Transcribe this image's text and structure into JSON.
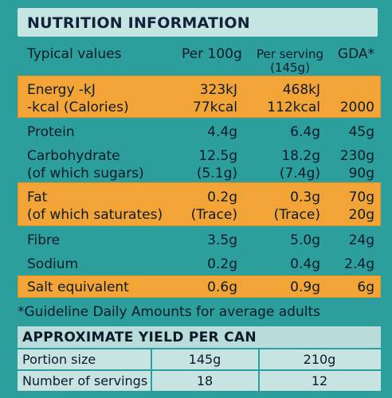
{
  "title": "NUTRITION INFORMATION",
  "header": {
    "label": "Typical values",
    "per100": "Per 100g",
    "perserving": "Per serving",
    "perserving_sub": "(145g)",
    "gda": "GDA*"
  },
  "rows": [
    {
      "label": "Energy -kJ",
      "per100": "323kJ",
      "perserving": "468kJ",
      "gda": ""
    },
    {
      "label": "-kcal (Calories)",
      "per100": "77kcal",
      "perserving": "112kcal",
      "gda": "2000"
    },
    {
      "label": "Protein",
      "per100": "4.4g",
      "perserving": "6.4g",
      "gda": "45g"
    },
    {
      "label": "Carbohydrate",
      "per100": "12.5g",
      "perserving": "18.2g",
      "gda": "230g"
    },
    {
      "label": "(of which sugars)",
      "per100": "(5.1g)",
      "perserving": "(7.4g)",
      "gda": "90g"
    },
    {
      "label": "Fat",
      "per100": "0.2g",
      "perserving": "0.3g",
      "gda": "70g"
    },
    {
      "label": "(of which saturates)",
      "per100": "(Trace)",
      "perserving": "(Trace)",
      "gda": "20g"
    },
    {
      "label": "Fibre",
      "per100": "3.5g",
      "perserving": "5.0g",
      "gda": "24g"
    },
    {
      "label": "Sodium",
      "per100": "0.2g",
      "perserving": "0.4g",
      "gda": "2.4g"
    },
    {
      "label": "Salt equivalent",
      "per100": "0.6g",
      "perserving": "0.9g",
      "gda": "6g"
    }
  ],
  "footnote": "*Guideline Daily Amounts for average adults",
  "yield": {
    "title": "APPROXIMATE YIELD PER CAN",
    "rows": [
      {
        "label": "Portion size",
        "a": "145g",
        "b": "210g"
      },
      {
        "label": "Number of servings",
        "a": "18",
        "b": "12"
      }
    ]
  },
  "colors": {
    "background": "#2c9e9c",
    "highlight": "#f2a437",
    "title_bar": "#c5e5e3",
    "text": "#0e1a2a"
  }
}
